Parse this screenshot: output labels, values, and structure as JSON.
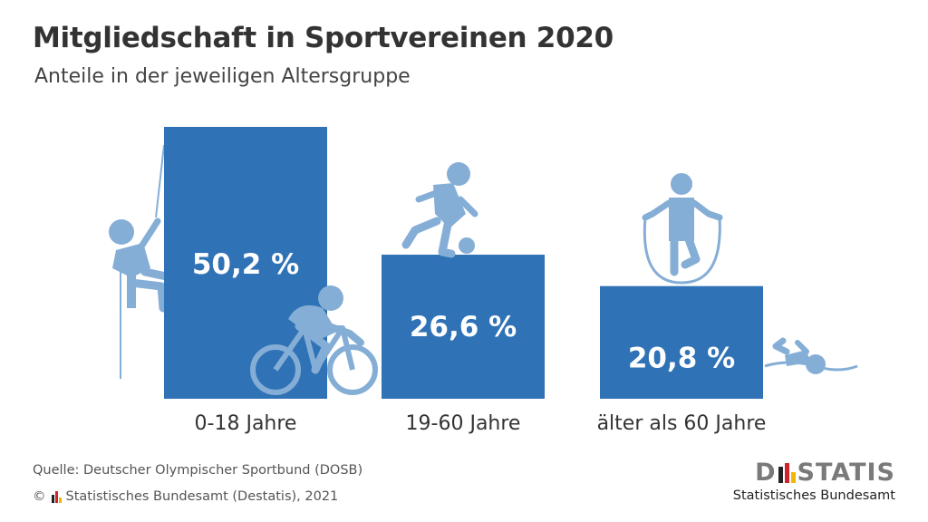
{
  "title": "Mitgliedschaft in Sportvereinen 2020",
  "subtitle": "Anteile in der jeweiligen Altersgruppe",
  "colors": {
    "bar": "#2f72b6",
    "icon": "#85aed6",
    "title": "#333333",
    "logo_black": "#222222",
    "logo_red": "#d2232a",
    "logo_gold": "#f2b705"
  },
  "icons": [
    "climber-icon",
    "cyclist-icon",
    "soccer-player-icon",
    "jump-rope-icon",
    "swimmer-icon"
  ],
  "chart_data": {
    "type": "bar",
    "categories": [
      "0-18 Jahre",
      "19-60 Jahre",
      "älter als 60 Jahre"
    ],
    "values": [
      50.2,
      26.6,
      20.8
    ],
    "value_labels": [
      "50,2 %",
      "26,6 %",
      "20,8 %"
    ],
    "ylim": [
      0,
      50.2
    ],
    "grid": false,
    "legend": "none"
  },
  "source": "Quelle: Deutscher Olympischer Sportbund (DOSB)",
  "copyright": "Statistisches Bundesamt (Destatis), 2021",
  "copyright_symbol": "©",
  "logo": {
    "left": "D",
    "right": "STATIS",
    "subtitle": "Statistisches Bundesamt"
  }
}
